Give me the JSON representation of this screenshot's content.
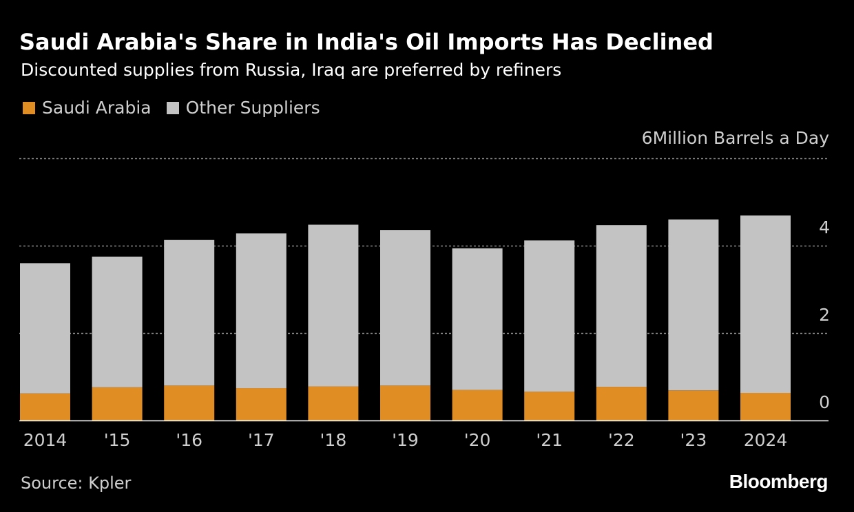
{
  "colors": {
    "background": "#000000",
    "saudi": "#e08d24",
    "other": "#c3c3c3",
    "gridline": "#8a8a8a",
    "text": "#ffffff",
    "muted_text": "#cfcfcf"
  },
  "header": {
    "title": "Saudi Arabia's Share in India's Oil Imports Has Declined",
    "subtitle": "Discounted supplies from Russia, Iraq are preferred by refiners"
  },
  "legend": {
    "items": [
      {
        "label": "Saudi Arabia",
        "color_key": "saudi"
      },
      {
        "label": "Other Suppliers",
        "color_key": "other"
      }
    ]
  },
  "footer": {
    "source": "Source: Kpler",
    "brand": "Bloomberg"
  },
  "chart_data": {
    "type": "bar",
    "stacked": true,
    "title": "Saudi Arabia's Share in India's Oil Imports Has Declined",
    "subtitle": "Discounted supplies from Russia, Iraq are preferred by refiners",
    "unit_label": "6Million Barrels a Day",
    "xlabel": "",
    "ylabel": "Million Barrels a Day",
    "ylim": [
      0,
      6
    ],
    "y_ticks": [
      0,
      2,
      4
    ],
    "y_gridlines": [
      2,
      4,
      6
    ],
    "grid": true,
    "legend_position": "top-left",
    "categories": [
      "2014",
      "'15",
      "'16",
      "'17",
      "'18",
      "'19",
      "'20",
      "'21",
      "'22",
      "'23",
      "2024"
    ],
    "series": [
      {
        "name": "Saudi Arabia",
        "values": [
          0.62,
          0.76,
          0.8,
          0.74,
          0.78,
          0.8,
          0.7,
          0.66,
          0.77,
          0.69,
          0.63
        ]
      },
      {
        "name": "Other Suppliers",
        "values": [
          2.98,
          2.99,
          3.33,
          3.54,
          3.7,
          3.56,
          3.24,
          3.46,
          3.7,
          3.91,
          4.06
        ]
      }
    ]
  }
}
